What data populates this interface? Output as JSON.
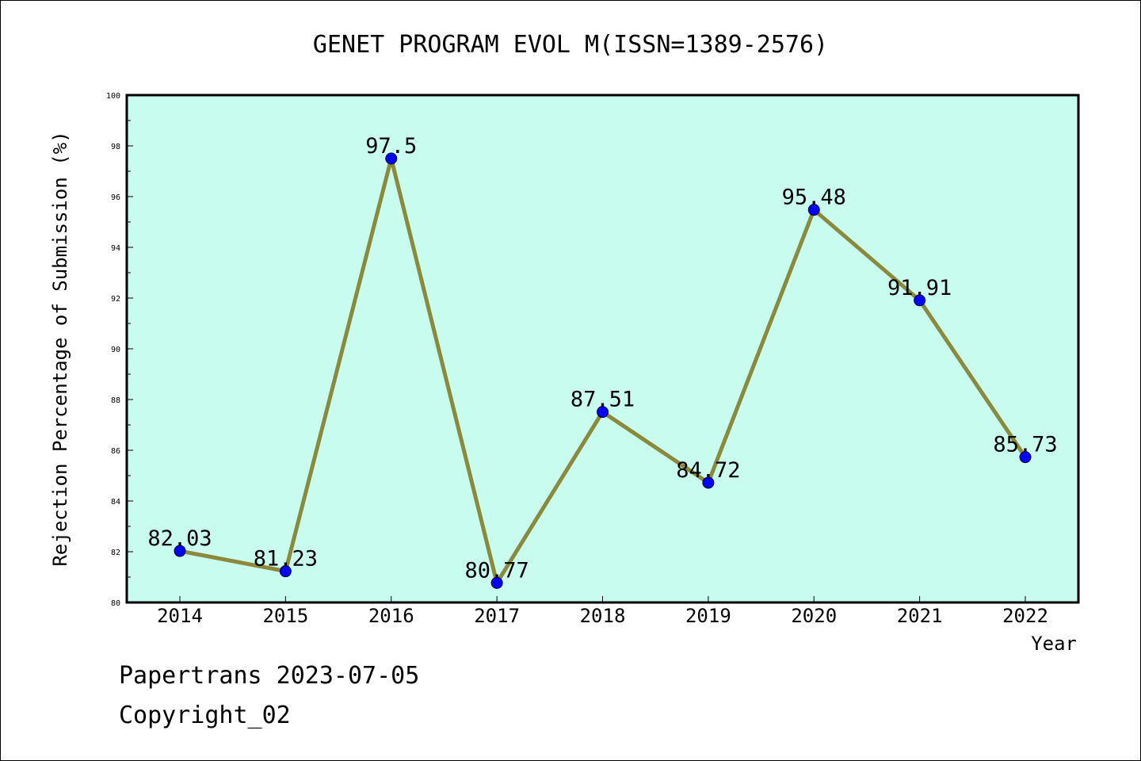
{
  "footer": {
    "line1": "Papertrans 2023-07-05",
    "line2": "Copyright_02"
  },
  "colors": {
    "plot_background": "#c8fcee",
    "line": "#8b8a3a",
    "marker": "#0000ff"
  },
  "chart_data": {
    "type": "line",
    "title": "GENET PROGRAM EVOL M(ISSN=1389-2576)",
    "xlabel": "Year",
    "ylabel": "Rejection Percentage of Submission (%)",
    "categories": [
      "2014",
      "2015",
      "2016",
      "2017",
      "2018",
      "2019",
      "2020",
      "2021",
      "2022"
    ],
    "values": [
      82.03,
      81.23,
      97.5,
      80.77,
      87.51,
      84.72,
      95.48,
      91.91,
      85.73
    ],
    "data_labels": [
      "82.03",
      "81.23",
      "97.5",
      "80.77",
      "87.51",
      "84.72",
      "95.48",
      "91.91",
      "85.73"
    ],
    "ylim": [
      80,
      100
    ],
    "yticks": [
      "80",
      "82",
      "84",
      "86",
      "88",
      "90",
      "92",
      "94",
      "96",
      "98",
      "100"
    ],
    "grid": false,
    "legend": "none"
  }
}
